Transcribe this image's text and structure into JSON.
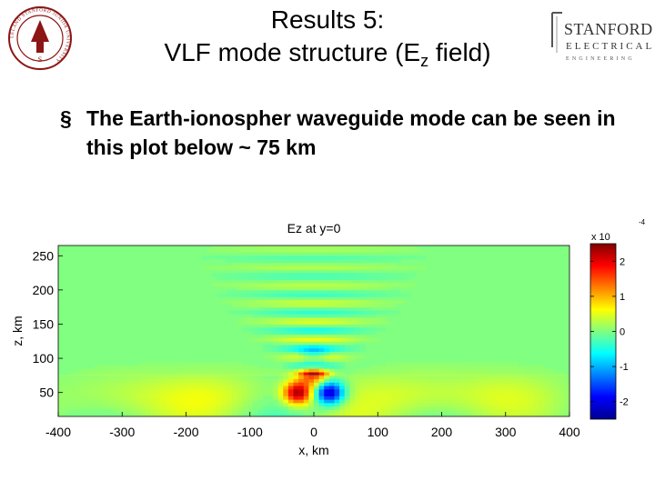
{
  "slide": {
    "title_line1": "Results 5:",
    "title_line2_pre": "VLF mode structure (E",
    "title_line2_sub": "z",
    "title_line2_post": " field)",
    "bullet_marker": "§",
    "bullet_text": "The Earth-ionospher waveguide mode can be seen in this plot below ~ 75 km",
    "logo_name": "STANFORD",
    "logo_sub": "ELECTRICAL",
    "logo_sub2": "ENGINEERING",
    "seal_initial": "S",
    "seal_ring_text": "LELAND STANFORD JUNIOR UNIVERSITY"
  },
  "chart_data": {
    "type": "heatmap",
    "title": "Ez at y=0",
    "xlabel": "x, km",
    "ylabel": "z, km",
    "xlim": [
      -400,
      400
    ],
    "ylim": [
      15,
      265
    ],
    "xticks": [
      -400,
      -300,
      -200,
      -100,
      0,
      100,
      200,
      300,
      400
    ],
    "yticks": [
      50,
      100,
      150,
      200,
      250
    ],
    "ionosphere_boundary_km": 75,
    "colorbar": {
      "label": "x 10",
      "exponent": "-4",
      "range": [
        -2.5,
        2.5
      ],
      "ticks": [
        2,
        1,
        0,
        -1,
        -2
      ]
    },
    "features": [
      {
        "x": -25,
        "z": 50,
        "value": 2.3
      },
      {
        "x": 25,
        "z": 50,
        "value": -2.3
      },
      {
        "x": 0,
        "z": 80,
        "value": 2.0
      },
      {
        "x": 0,
        "z": 95,
        "value": -1.2
      },
      {
        "x": -150,
        "z": 45,
        "value": 0.4
      },
      {
        "x": 150,
        "z": 45,
        "value": 0.4
      },
      {
        "x": -300,
        "z": 45,
        "value": 0.3
      },
      {
        "x": 300,
        "z": 45,
        "value": 0.35
      }
    ]
  },
  "colors": {
    "background_field": "#80ff80",
    "colormap": "jet"
  }
}
